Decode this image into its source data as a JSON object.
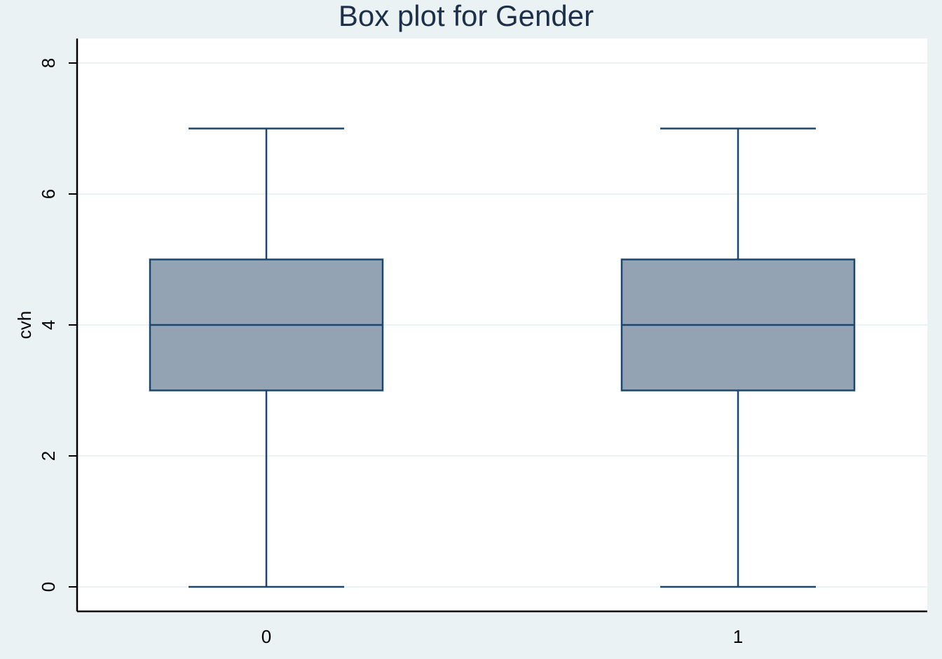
{
  "chart_data": {
    "type": "box",
    "title": "Box plot for Gender",
    "xlabel": "",
    "ylabel": "cvh",
    "categories": [
      "0",
      "1"
    ],
    "boxes": [
      {
        "category": "0",
        "min": 0,
        "q1": 3,
        "median": 4,
        "q3": 5,
        "max": 7
      },
      {
        "category": "1",
        "min": 0,
        "q1": 3,
        "median": 4,
        "q3": 5,
        "max": 7
      }
    ],
    "ylim": [
      0,
      8
    ],
    "yticks": [
      0,
      2,
      4,
      6,
      8
    ],
    "grid": true,
    "colors": {
      "background": "#eaf2f3",
      "plot_area": "#ffffff",
      "gridline": "#eaf2f3",
      "box_fill": "#94a3b4",
      "box_stroke": "#1a476f",
      "axis": "#000000",
      "title_text": "#1e2f4a",
      "label_text": "#000000"
    }
  }
}
